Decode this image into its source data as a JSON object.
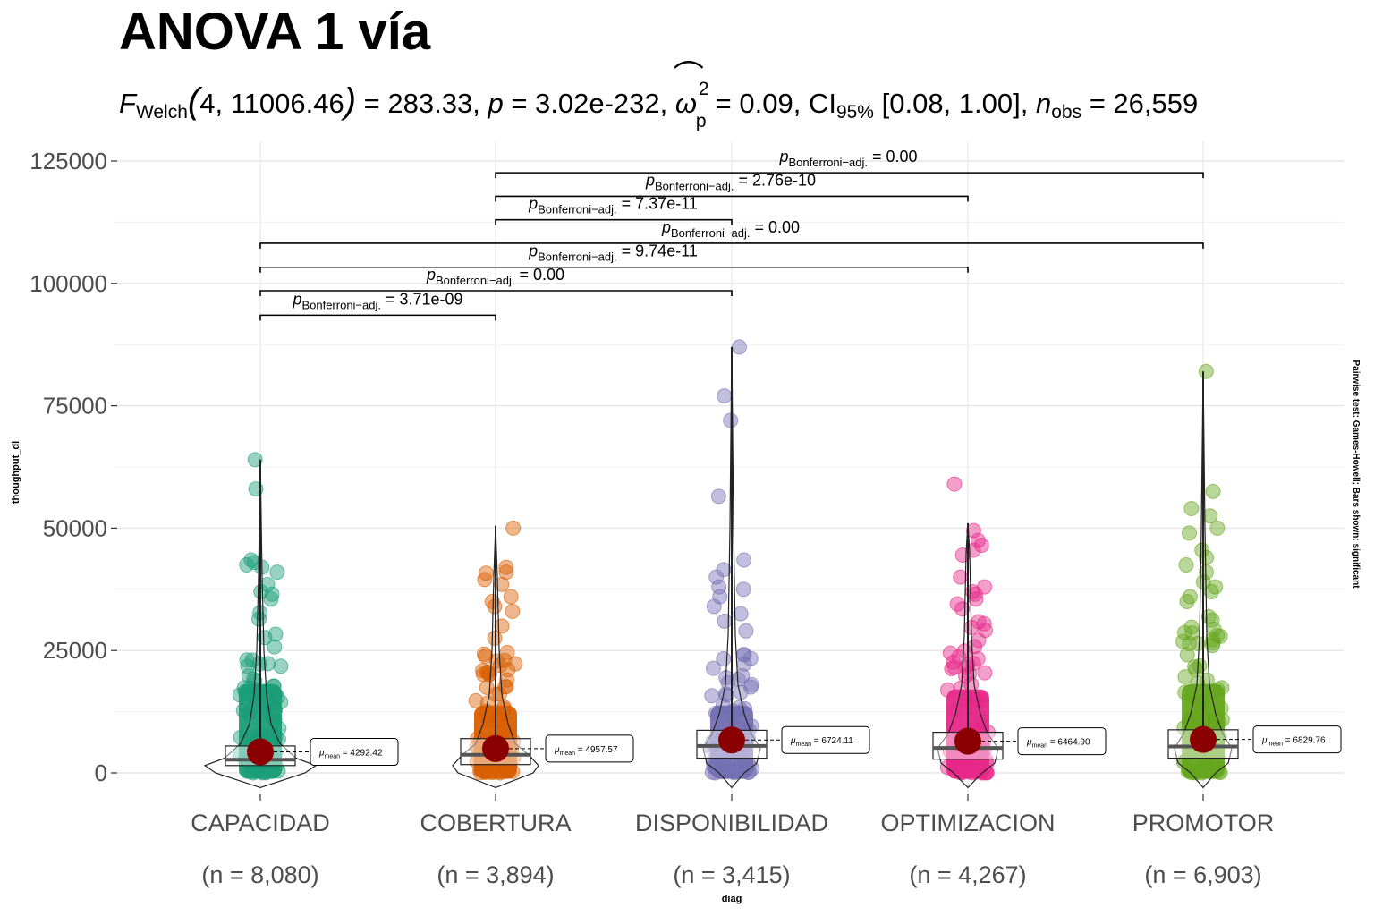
{
  "title": "ANOVA 1 vía",
  "subtitle": {
    "stat_name": "F",
    "stat_sub": "Welch",
    "df": "4, 11006.46",
    "stat_value": "= 283.33,",
    "p_label": "p",
    "p_value": "= 3.02e-232,",
    "effect_symbol": "ω",
    "effect_sup": "2",
    "effect_sub": "p",
    "effect_value": "= 0.09, CI",
    "ci_sub": "95%",
    "ci_value": "[0.08, 1.00],",
    "n_label": "n",
    "n_sub": "obs",
    "n_value": "= 26,559"
  },
  "chart_data": {
    "type": "violin-box-scatter",
    "xlabel": "diag",
    "ylabel": "thoughput_dl",
    "ylim": [
      -7000,
      128000
    ],
    "yticks": [
      0,
      25000,
      50000,
      75000,
      100000,
      125000
    ],
    "ytick_labels": [
      "0",
      "25000",
      "50000",
      "75000",
      "100000",
      "125000"
    ],
    "grid": true,
    "categories": [
      "CAPACIDAD",
      "COBERTURA",
      "DISPONIBILIDAD",
      "OPTIMIZACION",
      "PROMOTOR"
    ],
    "n_labels": [
      "(n = 8,080)",
      "(n = 3,894)",
      "(n = 3,415)",
      "(n = 4,267)",
      "(n = 6,903)"
    ],
    "colors": [
      "#1b9e77",
      "#d95f02",
      "#7570b3",
      "#e7298a",
      "#66a61e"
    ],
    "mean_point_color": "#8b0000",
    "means": [
      4292.42,
      4957.57,
      6724.11,
      6464.9,
      6829.76
    ],
    "mean_labels": [
      "= 4292.42",
      "= 4957.57",
      "= 6724.11",
      "= 6464.90",
      "= 6829.76"
    ],
    "mean_symbol": "μ",
    "mean_sub": "mean",
    "box": [
      {
        "q1": 1500,
        "median": 2700,
        "q3": 5500
      },
      {
        "q1": 1700,
        "median": 3700,
        "q3": 7000
      },
      {
        "q1": 3000,
        "median": 5500,
        "q3": 8700
      },
      {
        "q1": 2800,
        "median": 5100,
        "q3": 8300
      },
      {
        "q1": 3000,
        "median": 5400,
        "q3": 8800
      }
    ],
    "whisker_max": [
      64000,
      50500,
      87000,
      51000,
      82000
    ],
    "dense_max": [
      33000,
      25000,
      25000,
      31000,
      33000
    ],
    "outliers": [
      [
        64000,
        58000,
        43500,
        43000,
        42500,
        42000,
        41000,
        38500,
        37000,
        36500,
        35500
      ],
      [
        50000,
        42000,
        41000,
        40800,
        39500,
        38500,
        36000,
        35000,
        34000,
        33000,
        30000,
        27500
      ],
      [
        87000,
        77000,
        72000,
        56500,
        43500,
        41500,
        40000,
        38000,
        37500,
        36000,
        34000,
        32500,
        31000,
        29000
      ],
      [
        59000,
        49500,
        47500,
        46500,
        45500,
        44500,
        40000,
        38000,
        37000,
        36500,
        35500,
        34500,
        33500
      ],
      [
        82000,
        57500,
        54000,
        52500,
        50000,
        49000,
        45500,
        44000,
        42500,
        41000,
        39000,
        38000,
        37000,
        36000,
        35000
      ]
    ],
    "violin_widths": [
      [
        [
          -3000,
          0
        ],
        [
          0,
          50
        ],
        [
          1500,
          62
        ],
        [
          3000,
          40
        ],
        [
          6000,
          22
        ],
        [
          10000,
          12
        ],
        [
          16000,
          7
        ],
        [
          25000,
          4
        ],
        [
          40000,
          2
        ],
        [
          64000,
          0
        ]
      ],
      [
        [
          -3000,
          0
        ],
        [
          0,
          42
        ],
        [
          1500,
          48
        ],
        [
          3500,
          38
        ],
        [
          6000,
          22
        ],
        [
          10000,
          14
        ],
        [
          16000,
          7
        ],
        [
          25000,
          4
        ],
        [
          40000,
          2
        ],
        [
          50500,
          0
        ]
      ],
      [
        [
          -3000,
          0
        ],
        [
          0,
          14
        ],
        [
          2000,
          28
        ],
        [
          5000,
          32
        ],
        [
          8000,
          22
        ],
        [
          12000,
          14
        ],
        [
          18000,
          7
        ],
        [
          28000,
          4
        ],
        [
          50000,
          2
        ],
        [
          87000,
          0
        ]
      ],
      [
        [
          -3000,
          0
        ],
        [
          0,
          16
        ],
        [
          2000,
          30
        ],
        [
          5000,
          34
        ],
        [
          8000,
          22
        ],
        [
          12000,
          14
        ],
        [
          18000,
          7
        ],
        [
          28000,
          4
        ],
        [
          45000,
          2
        ],
        [
          51000,
          0
        ]
      ],
      [
        [
          -3000,
          0
        ],
        [
          0,
          14
        ],
        [
          2000,
          28
        ],
        [
          5000,
          32
        ],
        [
          8000,
          22
        ],
        [
          12000,
          14
        ],
        [
          18000,
          7
        ],
        [
          28000,
          4
        ],
        [
          50000,
          2
        ],
        [
          82000,
          0
        ]
      ]
    ],
    "comparisons": [
      {
        "from": 0,
        "to": 1,
        "y": 93500,
        "label": "= 3.71e-09",
        "label_x": 1.5
      },
      {
        "from": 0,
        "to": 2,
        "y": 98500,
        "label": "= 0.00",
        "label_x": 2.0
      },
      {
        "from": 0,
        "to": 3,
        "y": 103300,
        "label": "= 9.74e-11",
        "label_x": 2.5
      },
      {
        "from": 0,
        "to": 4,
        "y": 108200,
        "label": "= 0.00",
        "label_x": 3.0
      },
      {
        "from": 1,
        "to": 2,
        "y": 113000,
        "label": "= 7.37e-11",
        "label_x": 2.5
      },
      {
        "from": 1,
        "to": 3,
        "y": 117800,
        "label": "= 2.76e-10",
        "label_x": 3.0
      },
      {
        "from": 1,
        "to": 4,
        "y": 122600,
        "label": "= 0.00",
        "label_x": 3.5
      }
    ],
    "comparison_p_symbol": "p",
    "comparison_p_sub": "Bonferroni−adj.",
    "caption": "Pairwise test: Games-Howell; Bars shown: significant"
  }
}
